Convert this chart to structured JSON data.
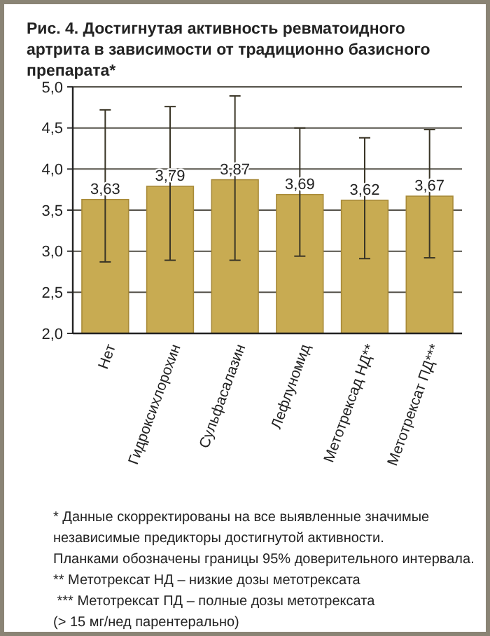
{
  "chart_data": {
    "type": "bar",
    "title": "Рис. 4. Достигнутая активность ревматоидного артрита в зависимости от традиционно базисного препарата*",
    "categories": [
      "Нет",
      "Гидроксихлорохин",
      "Сульфасалазин",
      "Лефлуномид",
      "Метотрексад НД**",
      "Метотрексат ПД***"
    ],
    "values": [
      3.63,
      3.79,
      3.87,
      3.69,
      3.62,
      3.67
    ],
    "value_labels": [
      "3,63",
      "3,79",
      "3,87",
      "3,69",
      "3,62",
      "3,67"
    ],
    "errors": [
      [
        2.87,
        4.72
      ],
      [
        2.89,
        4.76
      ],
      [
        2.89,
        4.89
      ],
      [
        2.94,
        4.5
      ],
      [
        2.91,
        4.38
      ],
      [
        2.92,
        4.48
      ]
    ],
    "color": "#c8ab52",
    "ylim": [
      2,
      5
    ],
    "yticks": [
      {
        "value": 2,
        "label": "2,0"
      },
      {
        "value": 2.5,
        "label": "2,5"
      },
      {
        "value": 3,
        "label": "3,0"
      },
      {
        "value": 3.5,
        "label": "3,5"
      },
      {
        "value": 4,
        "label": "4,0"
      },
      {
        "value": 4.5,
        "label": "4,5"
      },
      {
        "value": 5,
        "label": "5,0"
      }
    ],
    "grid": "y",
    "annotations": [
      "* Данные скорректированы на все выявленные значимые",
      "независимые предикторы достигнутой активности.",
      "Планками обозначены границы 95% доверительного интервала.",
      "** Метотрексат НД – низкие дозы метотрексата",
      " *** Метотрексат ПД – полные дозы метотрексата",
      "(> 15 мг/нед парентерально)"
    ]
  }
}
